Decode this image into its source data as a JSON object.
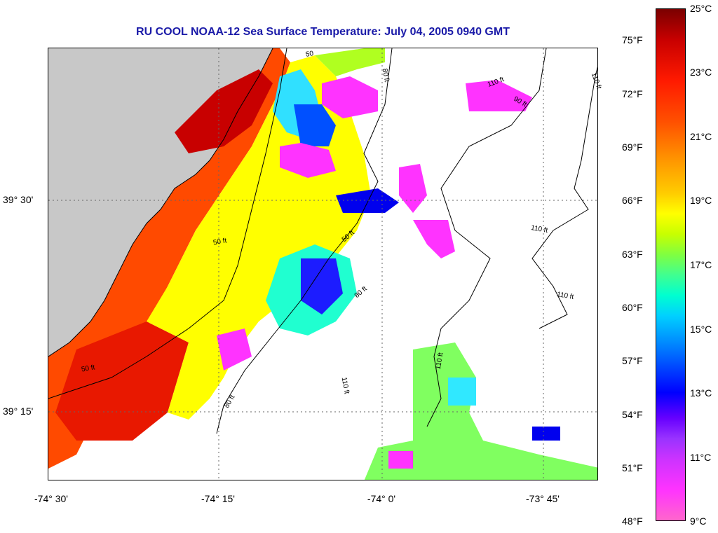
{
  "title": "RU COOL  NOAA-12  Sea Surface Temperature:  July 04, 2005 0940 GMT",
  "colors": {
    "title": "#1a1aa8",
    "land": "#c8c8c8",
    "sst_hot": "#c80000",
    "sst_warm": "#ff6a00",
    "sst_mild": "#ffff00",
    "sst_cool": "#00ffd0",
    "sst_cold": "#0000ff",
    "sst_coldest": "#ff33ff"
  },
  "axes": {
    "lat_labels": [
      "39° 30'",
      "39° 15'"
    ],
    "lon_labels": [
      "-74° 30'",
      "-74° 15'",
      "-74° 0'",
      "-73° 45'"
    ]
  },
  "colorbar": {
    "fahrenheit_labels": [
      "75°F",
      "72°F",
      "69°F",
      "66°F",
      "63°F",
      "60°F",
      "57°F",
      "54°F",
      "51°F",
      "48°F"
    ],
    "celsius_labels": [
      "25°C",
      "23°C",
      "21°C",
      "19°C",
      "17°C",
      "15°C",
      "13°C",
      "11°C",
      "9°C"
    ]
  },
  "contours": {
    "labels": [
      "50",
      "80 ft",
      "110 ft",
      "90 ft",
      "110 ft",
      "110 ft",
      "50 ft",
      "50 ft",
      "80 ft",
      "110 ft",
      "110 ft",
      "110 ft",
      "50 ft",
      "80 ft"
    ]
  }
}
